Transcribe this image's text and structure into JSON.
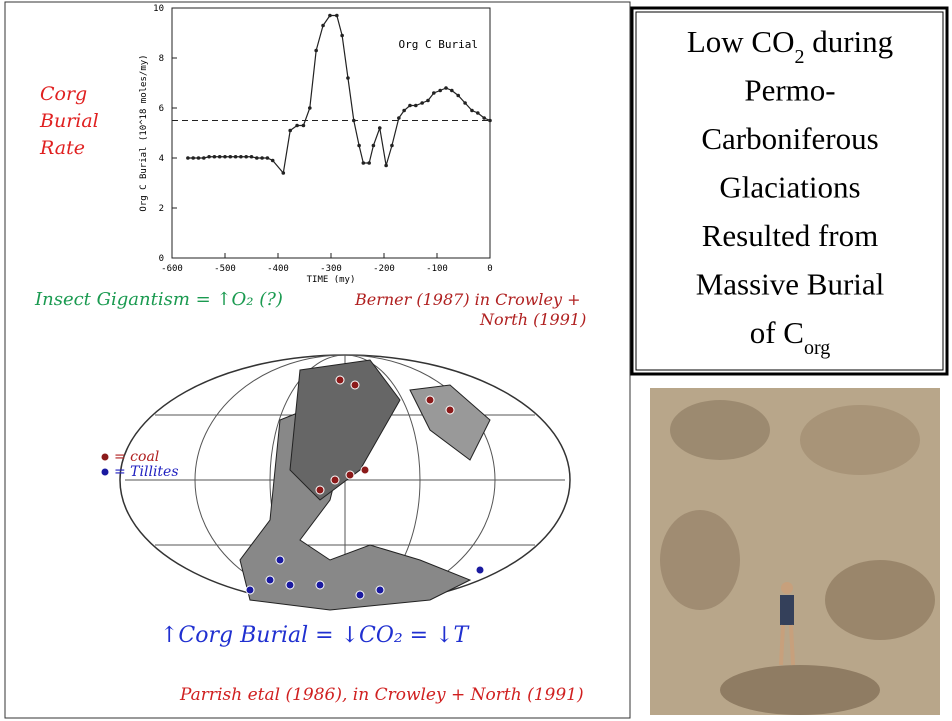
{
  "chart_data": {
    "type": "line",
    "title": "Org C Burial",
    "x_label": "TIME  (my)",
    "y_label": "Org C Burial (10^18 moles/my)",
    "xlim": [
      -600,
      0
    ],
    "xticks": [
      -600,
      -500,
      -400,
      -300,
      -200,
      -100,
      0
    ],
    "ylim": [
      0,
      10
    ],
    "yticks": [
      0,
      2,
      4,
      6,
      8,
      10
    ],
    "reference_line": 5.5,
    "color": "#222222",
    "x": [
      -570,
      -560,
      -550,
      -540,
      -530,
      -520,
      -510,
      -500,
      -490,
      -480,
      -470,
      -460,
      -450,
      -440,
      -430,
      -420,
      -410,
      -390,
      -377,
      -364,
      -352,
      -340,
      -328,
      -315,
      -302,
      -289,
      -279,
      -268,
      -257,
      -247,
      -239,
      -228,
      -220,
      -208,
      -196,
      -185,
      -172,
      -162,
      -151,
      -140,
      -128,
      -117,
      -106,
      -94,
      -83,
      -72,
      -60,
      -47,
      -34,
      -23,
      -11,
      0
    ],
    "values": [
      4.0,
      4.0,
      4.0,
      4.0,
      4.05,
      4.05,
      4.05,
      4.05,
      4.05,
      4.05,
      4.05,
      4.05,
      4.05,
      4.0,
      4.0,
      4.0,
      3.9,
      3.4,
      5.1,
      5.3,
      5.3,
      6.0,
      8.3,
      9.3,
      9.7,
      9.7,
      8.9,
      7.2,
      5.5,
      4.5,
      3.8,
      3.8,
      4.5,
      5.2,
      3.7,
      4.5,
      5.6,
      5.9,
      6.1,
      6.1,
      6.2,
      6.3,
      6.6,
      6.7,
      6.8,
      6.7,
      6.5,
      6.2,
      5.9,
      5.8,
      5.6,
      5.5
    ]
  },
  "notes": {
    "corg_label": [
      "Corg",
      "Burial",
      "Rate"
    ],
    "insect": "Insect Gigantism = ↑O₂ (?)",
    "source1": [
      "Berner (1987) in Crowley +",
      "North (1991)"
    ],
    "legend_coal": "= coal",
    "legend_tillites": "= Tillites",
    "equation": "↑Corg Burial = ↓CO₂ = ↓T",
    "source2": "Parrish etal (1986), in Crowley + North (1991)"
  },
  "box": {
    "lines": [
      [
        {
          "t": "Low CO"
        },
        {
          "sub": "2"
        },
        {
          "t": " during"
        }
      ],
      [
        {
          "t": "Permo-"
        }
      ],
      [
        {
          "t": "Carboniferous"
        }
      ],
      [
        {
          "t": "Glaciations"
        }
      ],
      [
        {
          "t": "Resulted from"
        }
      ],
      [
        {
          "t": "Massive Burial"
        }
      ],
      [
        {
          "t": "of C"
        },
        {
          "sub": "org"
        }
      ]
    ]
  }
}
